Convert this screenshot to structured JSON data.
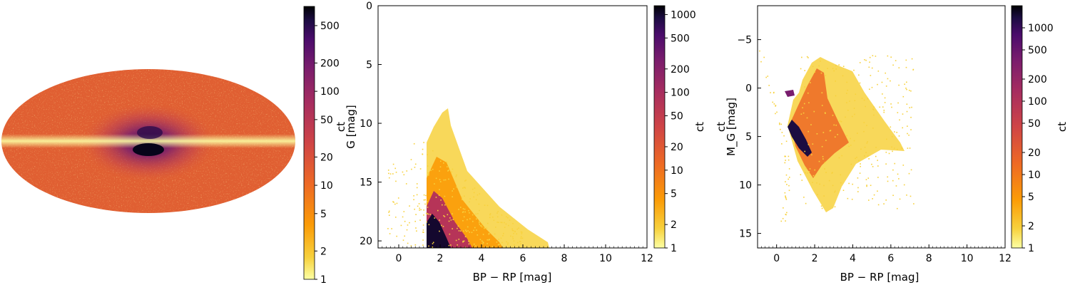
{
  "chart_data": [
    {
      "type": "heatmap",
      "projection": "mollweide",
      "title": "",
      "description_of_map": "all-sky star count map",
      "colormap": "inferno_r",
      "colorbar": {
        "label": "ct",
        "scale": "log",
        "range": [
          1,
          800
        ],
        "ticks": [
          1,
          2,
          5,
          10,
          20,
          50,
          100,
          200,
          500
        ],
        "tick_labels": [
          "1",
          "2",
          "5",
          "10",
          "20",
          "50",
          "100",
          "200",
          "500"
        ]
      }
    },
    {
      "type": "heatmap",
      "title": "",
      "xlabel": "BP − RP [mag]",
      "ylabel": "G [mag]",
      "xlim": [
        -1,
        12
      ],
      "ylim": [
        20.6,
        0
      ],
      "x_ticks": [
        0,
        2,
        4,
        6,
        8,
        10,
        12
      ],
      "x_tick_labels": [
        "0",
        "2",
        "4",
        "6",
        "8",
        "10",
        "12"
      ],
      "y_ticks": [
        0,
        5,
        10,
        15,
        20
      ],
      "y_tick_labels": [
        "0",
        "5",
        "10",
        "15",
        "20"
      ],
      "colormap": "inferno_r",
      "colorbar": {
        "label": "ct",
        "scale": "log",
        "range": [
          1,
          1300
        ],
        "ticks": [
          1,
          2,
          5,
          10,
          20,
          50,
          100,
          200,
          500,
          1000
        ],
        "tick_labels": [
          "1",
          "2",
          "5",
          "10",
          "20",
          "50",
          "100",
          "200",
          "500",
          "1000"
        ]
      }
    },
    {
      "type": "heatmap",
      "title": "",
      "xlabel": "BP − RP [mag]",
      "ylabel": "M_G [mag]",
      "xlim": [
        -1,
        12
      ],
      "ylim": [
        16.5,
        -8.5
      ],
      "x_ticks": [
        0,
        2,
        4,
        6,
        8,
        10,
        12
      ],
      "x_tick_labels": [
        "0",
        "2",
        "4",
        "6",
        "8",
        "10",
        "12"
      ],
      "y_ticks": [
        -5,
        0,
        5,
        10,
        15
      ],
      "y_tick_labels": [
        "−5",
        "0",
        "5",
        "10",
        "15"
      ],
      "colormap": "inferno_r",
      "colorbar": {
        "label": "ct",
        "scale": "log",
        "range": [
          1,
          2000
        ],
        "ticks": [
          1,
          2,
          5,
          10,
          20,
          50,
          100,
          200,
          500,
          1000
        ],
        "tick_labels": [
          "1",
          "2",
          "5",
          "10",
          "20",
          "50",
          "100",
          "200",
          "500",
          "1000"
        ]
      }
    }
  ]
}
